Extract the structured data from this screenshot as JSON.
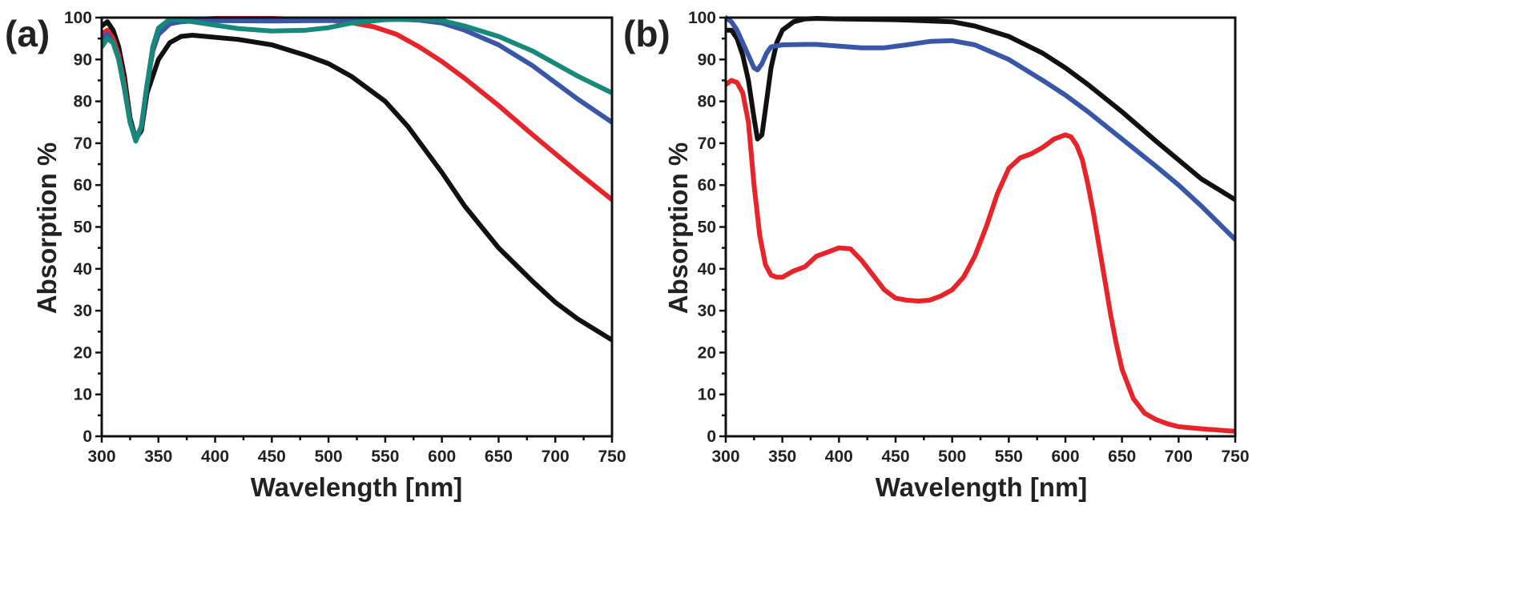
{
  "chart_data": [
    {
      "type": "line",
      "panel_label": "(a)",
      "xlabel": "Wavelength [nm]",
      "ylabel": "Absorption %",
      "xlim": [
        300,
        750
      ],
      "ylim": [
        0,
        100
      ],
      "xticks": [
        300,
        350,
        400,
        450,
        500,
        550,
        600,
        650,
        700,
        750
      ],
      "yticks": [
        0,
        10,
        20,
        30,
        40,
        50,
        60,
        70,
        80,
        90,
        100
      ],
      "grid": false,
      "series": [
        {
          "name": "black",
          "color": "#111111",
          "x": [
            300,
            305,
            310,
            315,
            320,
            325,
            330,
            335,
            340,
            350,
            360,
            370,
            380,
            400,
            420,
            450,
            480,
            500,
            520,
            550,
            570,
            600,
            620,
            650,
            680,
            700,
            720,
            750
          ],
          "y": [
            98,
            99,
            97,
            93,
            86,
            76,
            71,
            73,
            82,
            90,
            94,
            95.5,
            95.8,
            95.3,
            94.8,
            93.5,
            91,
            89,
            86,
            80,
            74,
            63,
            55,
            45,
            37,
            32,
            28,
            23
          ]
        },
        {
          "name": "red",
          "color": "#e8242b",
          "x": [
            300,
            305,
            310,
            315,
            320,
            325,
            330,
            335,
            340,
            345,
            350,
            360,
            370,
            380,
            400,
            450,
            500,
            520,
            540,
            560,
            580,
            600,
            620,
            650,
            680,
            700,
            720,
            750
          ],
          "y": [
            96,
            97,
            95,
            91,
            84,
            75,
            71,
            74,
            84,
            92,
            96,
            98.5,
            99.3,
            99.6,
            99.8,
            99.8,
            99.4,
            98.8,
            97.8,
            96,
            93,
            89.5,
            85.5,
            79,
            72,
            67.5,
            63,
            56.5
          ]
        },
        {
          "name": "blue",
          "color": "#3a57a7",
          "x": [
            300,
            305,
            310,
            315,
            320,
            325,
            330,
            335,
            340,
            345,
            350,
            360,
            370,
            380,
            400,
            450,
            500,
            550,
            580,
            600,
            620,
            650,
            680,
            700,
            720,
            750
          ],
          "y": [
            95,
            96,
            94,
            90,
            83,
            75,
            71,
            74,
            84,
            92,
            96,
            98.5,
            99,
            99.2,
            99.3,
            99.2,
            99.3,
            99.7,
            99.4,
            98.7,
            97,
            93.5,
            88.5,
            84.5,
            80.5,
            75
          ]
        },
        {
          "name": "teal",
          "color": "#17897b",
          "x": [
            300,
            305,
            310,
            315,
            320,
            325,
            330,
            335,
            340,
            345,
            350,
            360,
            370,
            380,
            400,
            420,
            450,
            480,
            500,
            520,
            550,
            580,
            600,
            620,
            650,
            680,
            700,
            720,
            750
          ],
          "y": [
            93,
            95,
            94,
            90,
            83,
            75,
            70.5,
            74,
            84,
            93,
            97.5,
            99.6,
            99.4,
            99,
            98.2,
            97.4,
            96.8,
            97,
            97.6,
            98.7,
            99.5,
            99.7,
            99.3,
            98,
            95.5,
            92,
            89,
            86,
            82
          ]
        }
      ]
    },
    {
      "type": "line",
      "panel_label": "(b)",
      "xlabel": "Wavelength [nm]",
      "ylabel": "Absorption %",
      "xlim": [
        300,
        750
      ],
      "ylim": [
        0,
        100
      ],
      "xticks": [
        300,
        350,
        400,
        450,
        500,
        550,
        600,
        650,
        700,
        750
      ],
      "yticks": [
        0,
        10,
        20,
        30,
        40,
        50,
        60,
        70,
        80,
        90,
        100
      ],
      "grid": false,
      "series": [
        {
          "name": "black",
          "color": "#111111",
          "x": [
            300,
            305,
            310,
            315,
            320,
            325,
            328,
            332,
            336,
            340,
            345,
            350,
            360,
            370,
            380,
            400,
            450,
            500,
            520,
            550,
            580,
            600,
            620,
            650,
            680,
            700,
            720,
            750
          ],
          "y": [
            97,
            97,
            95,
            91,
            85,
            76,
            71,
            72,
            80,
            88,
            94,
            97,
            99,
            99.7,
            99.8,
            99.7,
            99.5,
            99,
            98,
            95.5,
            91.5,
            88,
            84,
            77.5,
            70.5,
            66,
            61.5,
            56.5
          ]
        },
        {
          "name": "blue",
          "color": "#3a57a7",
          "x": [
            300,
            305,
            310,
            315,
            320,
            325,
            328,
            332,
            336,
            340,
            350,
            370,
            380,
            400,
            420,
            440,
            460,
            480,
            500,
            520,
            550,
            580,
            600,
            620,
            650,
            680,
            700,
            720,
            750
          ],
          "y": [
            100,
            99,
            97,
            94,
            91,
            88,
            87.5,
            89,
            91.5,
            93,
            93.5,
            93.6,
            93.6,
            93.2,
            92.8,
            92.8,
            93.5,
            94.3,
            94.5,
            93.5,
            90,
            85,
            81.5,
            77.5,
            71,
            64.5,
            60,
            55,
            47
          ]
        },
        {
          "name": "red",
          "color": "#e8242b",
          "x": [
            300,
            305,
            310,
            315,
            320,
            325,
            330,
            335,
            340,
            345,
            350,
            360,
            370,
            380,
            390,
            400,
            410,
            420,
            430,
            440,
            450,
            460,
            470,
            480,
            490,
            500,
            510,
            520,
            530,
            540,
            550,
            560,
            570,
            580,
            590,
            600,
            605,
            610,
            615,
            620,
            625,
            630,
            635,
            640,
            645,
            650,
            660,
            670,
            680,
            690,
            700,
            720,
            740,
            750
          ],
          "y": [
            84,
            85,
            84.5,
            82,
            75,
            60,
            48,
            41,
            38.5,
            38,
            38,
            39.5,
            40.5,
            43,
            44,
            45,
            44.8,
            42,
            38.5,
            35,
            33,
            32.5,
            32.3,
            32.5,
            33.5,
            35,
            38,
            43,
            50,
            58,
            64,
            66.5,
            67.5,
            69,
            71,
            72,
            71.5,
            69.5,
            66,
            60,
            53,
            45,
            37,
            29,
            22,
            16,
            9,
            5.5,
            4,
            3,
            2.3,
            1.8,
            1.4,
            1.2
          ]
        }
      ]
    }
  ]
}
